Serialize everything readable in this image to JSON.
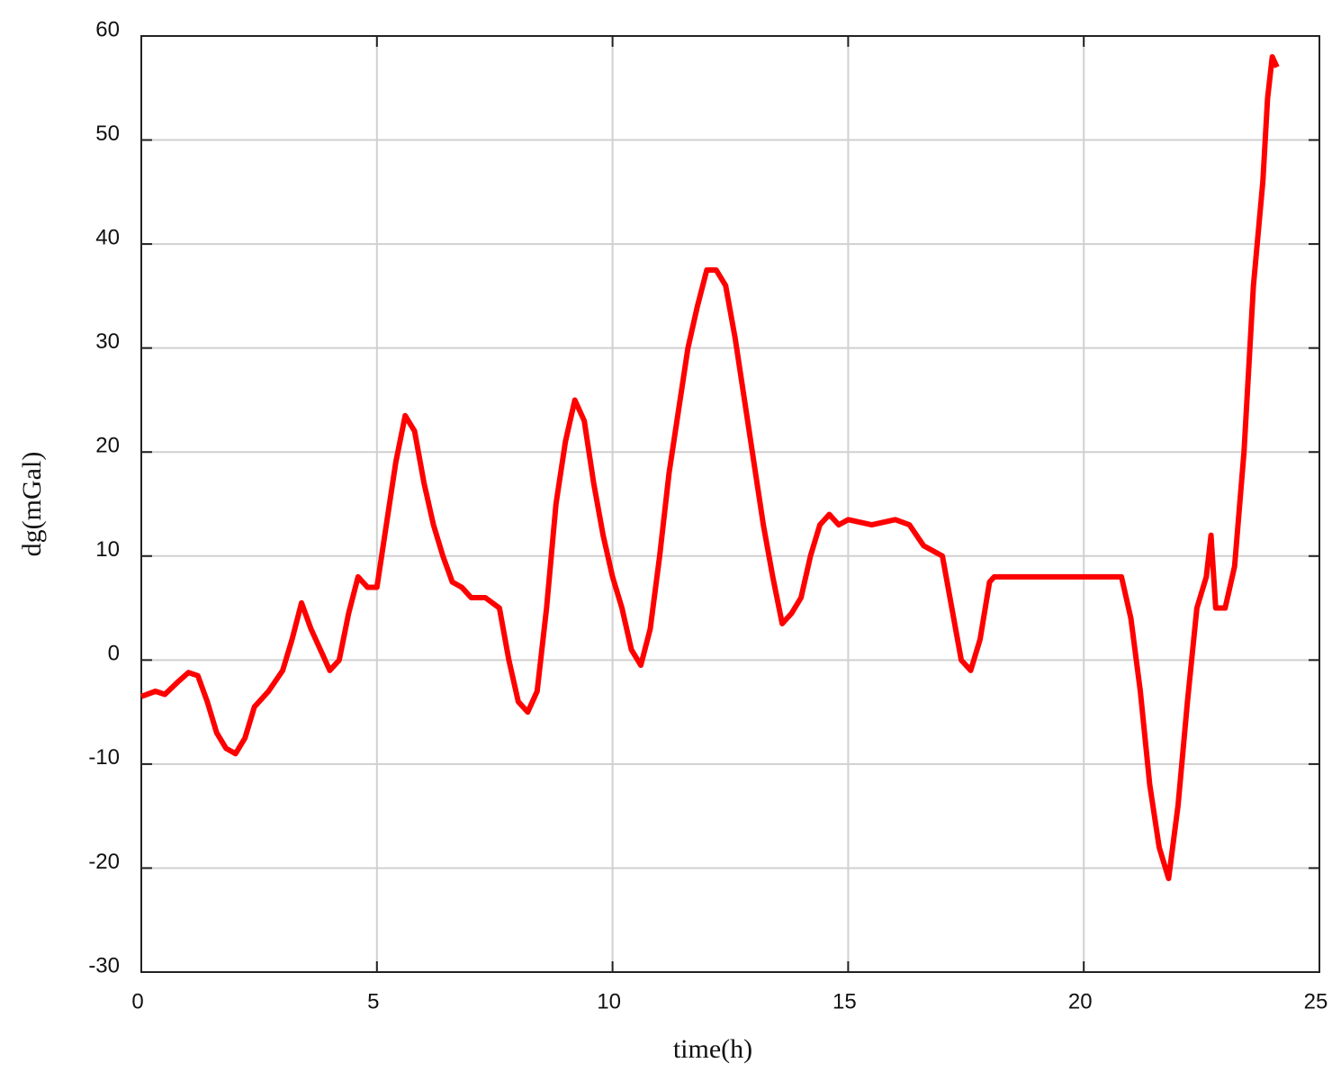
{
  "chart_data": {
    "type": "line",
    "xlabel": "time(h)",
    "ylabel": "dg(mGal)",
    "x": [
      0,
      0.3,
      0.5,
      0.8,
      1.0,
      1.2,
      1.4,
      1.6,
      1.8,
      2.0,
      2.2,
      2.4,
      2.7,
      3.0,
      3.2,
      3.4,
      3.6,
      3.8,
      4.0,
      4.2,
      4.4,
      4.6,
      4.8,
      5.0,
      5.2,
      5.4,
      5.6,
      5.8,
      6.0,
      6.2,
      6.4,
      6.6,
      6.8,
      7.0,
      7.3,
      7.6,
      7.8,
      8.0,
      8.2,
      8.4,
      8.6,
      8.8,
      9.0,
      9.2,
      9.4,
      9.6,
      9.8,
      10.0,
      10.2,
      10.4,
      10.6,
      10.8,
      11.0,
      11.2,
      11.4,
      11.6,
      11.8,
      12.0,
      12.2,
      12.4,
      12.6,
      12.8,
      13.0,
      13.2,
      13.4,
      13.6,
      13.8,
      14.0,
      14.2,
      14.4,
      14.6,
      14.8,
      15.0,
      15.5,
      16.0,
      16.3,
      16.6,
      17.0,
      17.2,
      17.4,
      17.6,
      17.8,
      18.0,
      18.1,
      20.8,
      21.0,
      21.2,
      21.4,
      21.6,
      21.8,
      22.0,
      22.2,
      22.4,
      22.6,
      22.7,
      22.8,
      23.0,
      23.2,
      23.4,
      23.6,
      23.8,
      23.9,
      24.0,
      24.1
    ],
    "series": [
      {
        "color": "#ff0000",
        "values": [
          -3.5,
          -3,
          -3.3,
          -2,
          -1.2,
          -1.5,
          -4,
          -7,
          -8.5,
          -9,
          -7.5,
          -4.5,
          -3,
          -1,
          2,
          5.5,
          3,
          1,
          -1,
          0,
          4.5,
          8,
          7,
          7,
          13,
          19,
          23.5,
          22,
          17,
          13,
          10,
          7.5,
          7,
          6,
          6,
          5,
          0,
          -4,
          -5,
          -3,
          5,
          15,
          21,
          25,
          23,
          17,
          12,
          8,
          5,
          1,
          -0.5,
          3,
          10,
          18,
          24,
          30,
          34,
          37.5,
          37.5,
          36,
          31,
          25,
          19,
          13,
          8,
          3.5,
          4.5,
          6,
          10,
          13,
          14,
          13,
          13.5,
          13,
          13.5,
          13,
          11,
          10,
          5,
          0,
          -1,
          2,
          7.5,
          8,
          8,
          4,
          -3,
          -12,
          -18,
          -21,
          -14,
          -4,
          5,
          8,
          12,
          5,
          5,
          9,
          20,
          36,
          46,
          54,
          58,
          57
        ]
      }
    ],
    "xlim": [
      0,
      25
    ],
    "xticks": [
      0,
      5,
      10,
      15,
      20,
      25
    ],
    "ylim": [
      -30,
      60
    ],
    "yticks": [
      -30,
      -20,
      -10,
      0,
      10,
      20,
      30,
      40,
      50,
      60
    ],
    "grid": true
  }
}
